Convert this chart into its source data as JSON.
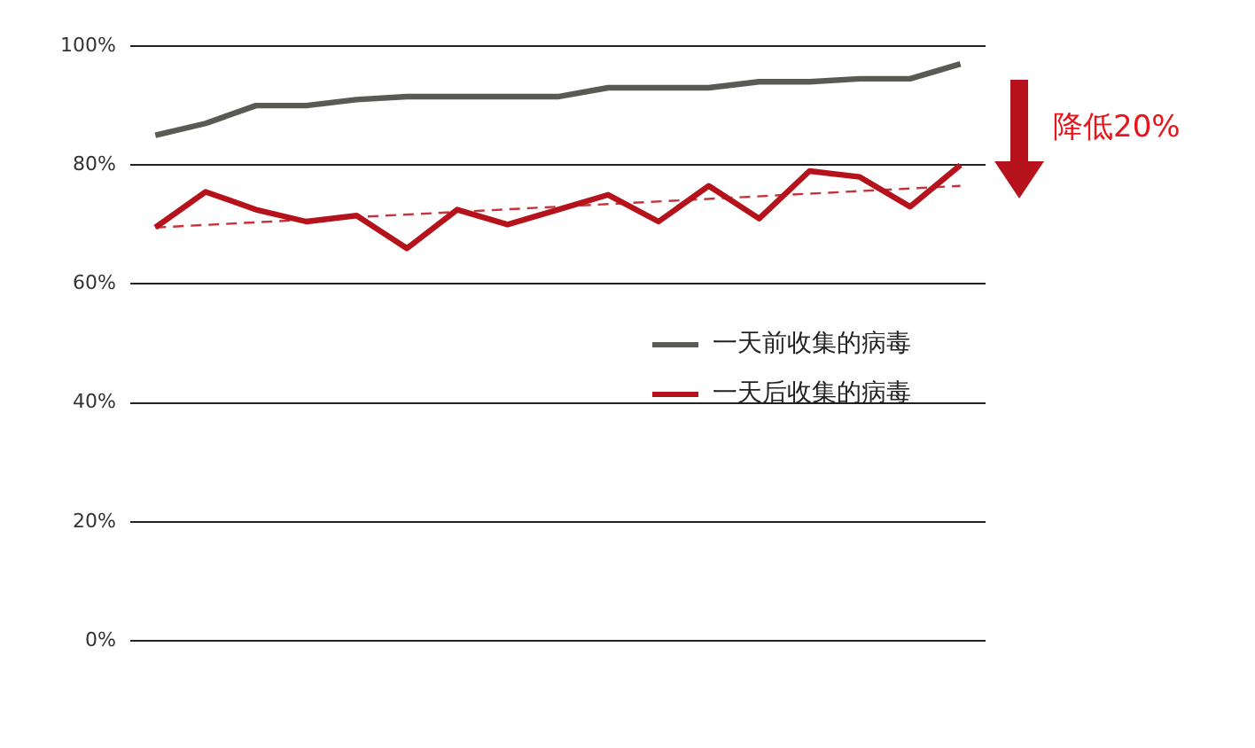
{
  "chart_data": {
    "type": "line",
    "categories": [
      null,
      null,
      null,
      null,
      null,
      null,
      null,
      null,
      null,
      null,
      null,
      null,
      null,
      null,
      null,
      null,
      null
    ],
    "series": [
      {
        "name": "一天前收集的病毒",
        "color": "#5a5a55",
        "values": [
          85,
          87,
          90,
          90,
          91,
          91.5,
          91.5,
          91.5,
          91.5,
          93,
          93,
          93,
          94,
          94,
          94.5,
          94.5,
          97
        ]
      },
      {
        "name": "一天后收集的病毒",
        "color": "#b5121b",
        "values": [
          69.5,
          75.5,
          72.5,
          70.5,
          71.5,
          66,
          72.5,
          70,
          72.5,
          75,
          70.5,
          76.5,
          71,
          79,
          78,
          73,
          80
        ]
      },
      {
        "color": "#c8323a",
        "line_style": "dashed",
        "values": [
          69.5,
          null,
          null,
          null,
          null,
          null,
          null,
          null,
          null,
          null,
          null,
          null,
          null,
          null,
          null,
          null,
          76.5
        ]
      }
    ],
    "ylim": [
      0,
      100
    ],
    "yticks": [
      {
        "value": 0,
        "label": "0%"
      },
      {
        "value": 20,
        "label": "20%"
      },
      {
        "value": 40,
        "label": "40%"
      },
      {
        "value": 60,
        "label": "60%"
      },
      {
        "value": 80,
        "label": "80%"
      },
      {
        "value": 100,
        "label": "100%"
      }
    ],
    "grid": "y",
    "legend": "right",
    "marker": "none",
    "annotations": [
      "降低20%"
    ]
  }
}
